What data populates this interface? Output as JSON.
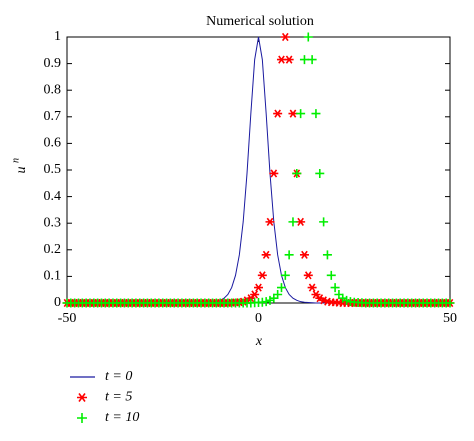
{
  "chart_data": {
    "type": "line",
    "title": "Numerical solution",
    "xlabel": "x",
    "ylabel": "u",
    "ylabel_superscript": "n",
    "x": [
      -50,
      -49,
      -48,
      -47,
      -46,
      -45,
      -44,
      -43,
      -42,
      -41,
      -40,
      -39,
      -38,
      -37,
      -36,
      -35,
      -34,
      -33,
      -32,
      -31,
      -30,
      -29,
      -28,
      -27,
      -26,
      -25,
      -24,
      -23,
      -22,
      -21,
      -20,
      -19,
      -18,
      -17,
      -16,
      -15,
      -14,
      -13,
      -12,
      -11,
      -10,
      -9,
      -8,
      -7,
      -6,
      -5,
      -4,
      -3,
      -2,
      -1,
      0,
      1,
      2,
      3,
      4,
      5,
      6,
      7,
      8,
      9,
      10,
      11,
      12,
      13,
      14,
      15,
      16,
      17,
      18,
      19,
      20,
      21,
      22,
      23,
      24,
      25,
      26,
      27,
      28,
      29,
      30,
      31,
      32,
      33,
      34,
      35,
      36,
      37,
      38,
      39,
      40,
      41,
      42,
      43,
      44,
      45,
      46,
      47,
      48,
      49,
      50
    ],
    "series": [
      {
        "name": "t = 0",
        "color": "#1a1aa0",
        "marker": "none",
        "values": [
          0,
          0,
          0,
          0,
          0,
          0,
          0,
          0,
          0,
          0,
          0,
          0,
          0,
          0,
          0,
          0,
          0,
          0,
          0,
          0,
          0,
          0,
          0,
          0,
          0,
          0,
          0,
          0,
          0,
          0,
          0,
          0,
          0,
          0,
          0,
          0,
          0.001,
          0.002,
          0.003,
          0.005,
          0.01,
          0.018,
          0.032,
          0.058,
          0.104,
          0.181,
          0.305,
          0.487,
          0.712,
          0.915,
          1,
          0.915,
          0.712,
          0.487,
          0.305,
          0.181,
          0.104,
          0.058,
          0.032,
          0.018,
          0.01,
          0.005,
          0.003,
          0.002,
          0.001,
          0,
          0,
          0,
          0,
          0,
          0,
          0,
          0,
          0,
          0,
          0,
          0,
          0,
          0,
          0,
          0,
          0,
          0,
          0,
          0,
          0,
          0,
          0,
          0,
          0,
          0,
          0,
          0,
          0,
          0,
          0,
          0,
          0,
          0,
          0,
          0
        ]
      },
      {
        "name": "t = 5",
        "color": "#ff0000",
        "marker": "star",
        "values": [
          0,
          0,
          0,
          0,
          0,
          0,
          0,
          0,
          0,
          0,
          0,
          0,
          0,
          0,
          0,
          0,
          0,
          0,
          0,
          0,
          0,
          0,
          0,
          0,
          0,
          0,
          0,
          0,
          0,
          0,
          0,
          0,
          0,
          0,
          0,
          0,
          0,
          0,
          0,
          0,
          0,
          0,
          0,
          0.001,
          0.002,
          0.003,
          0.005,
          0.01,
          0.018,
          0.032,
          0.058,
          0.104,
          0.181,
          0.305,
          0.487,
          0.712,
          0.915,
          1,
          0.915,
          0.712,
          0.487,
          0.305,
          0.181,
          0.104,
          0.058,
          0.032,
          0.018,
          0.01,
          0.005,
          0.003,
          0.002,
          0.001,
          0,
          0,
          0,
          0,
          0,
          0,
          0,
          0,
          0,
          0,
          0,
          0,
          0,
          0,
          0,
          0,
          0,
          0,
          0,
          0,
          0,
          0,
          0,
          0,
          0,
          0,
          0,
          0,
          0
        ]
      },
      {
        "name": "t = 10",
        "color": "#00ee00",
        "marker": "plus",
        "values": [
          0,
          0,
          0,
          0,
          0,
          0,
          0,
          0,
          0,
          0,
          0,
          0,
          0,
          0,
          0,
          0,
          0,
          0,
          0,
          0,
          0,
          0,
          0,
          0,
          0,
          0,
          0,
          0,
          0,
          0,
          0,
          0,
          0,
          0,
          0,
          0,
          0,
          0,
          0,
          0,
          0,
          0,
          0,
          0,
          0,
          0,
          0,
          0,
          0,
          0.001,
          0.002,
          0.003,
          0.005,
          0.01,
          0.018,
          0.032,
          0.058,
          0.104,
          0.181,
          0.305,
          0.487,
          0.712,
          0.915,
          1,
          0.915,
          0.712,
          0.487,
          0.305,
          0.181,
          0.104,
          0.058,
          0.032,
          0.018,
          0.01,
          0.005,
          0.003,
          0.002,
          0.001,
          0,
          0,
          0,
          0,
          0,
          0,
          0,
          0,
          0,
          0,
          0,
          0,
          0,
          0,
          0,
          0,
          0,
          0,
          0,
          0,
          0,
          0,
          0
        ]
      }
    ],
    "xlim": [
      -50,
      50
    ],
    "xticks": [
      -50,
      0,
      50
    ],
    "ylim": [
      0,
      1
    ],
    "yticks": [
      0,
      0.1,
      0.2,
      0.3,
      0.4,
      0.5,
      0.6,
      0.7,
      0.8,
      0.9,
      1
    ],
    "grid": false,
    "legend": "below-left"
  }
}
